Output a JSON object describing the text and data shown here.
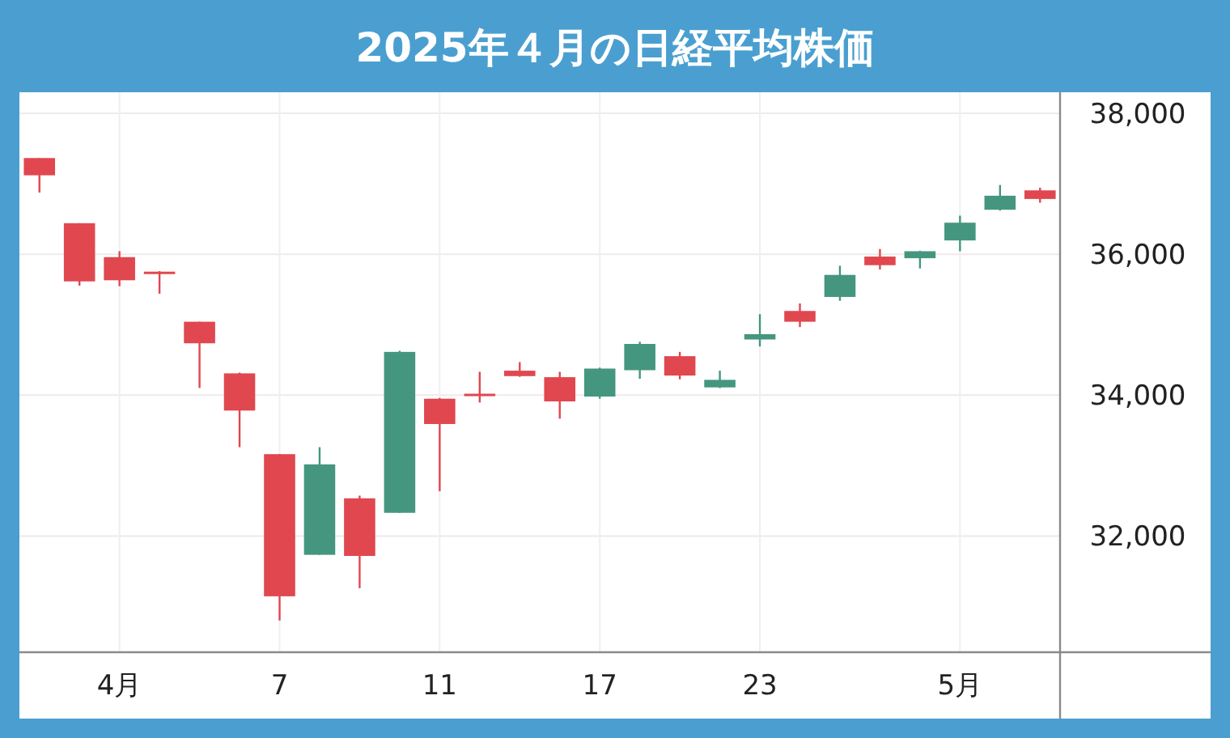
{
  "chart_data": {
    "type": "candlestick",
    "title": "2025年４月の日経平均株価",
    "categories": [
      null,
      null,
      "4月",
      null,
      null,
      null,
      "7",
      null,
      null,
      null,
      "11",
      null,
      null,
      null,
      "17",
      null,
      null,
      null,
      "23",
      null,
      null,
      null,
      null,
      "5月",
      null,
      null
    ],
    "ohlc": [
      [
        37366,
        37366,
        36876,
        37121
      ],
      [
        36441,
        36441,
        35554,
        35615
      ],
      [
        35959,
        36043,
        35547,
        35631
      ],
      [
        35753,
        35760,
        35440,
        35725
      ],
      [
        35042,
        35042,
        34102,
        34736
      ],
      [
        34309,
        34320,
        33261,
        33781
      ],
      [
        33162,
        33162,
        30800,
        31144
      ],
      [
        31733,
        33261,
        31733,
        33017
      ],
      [
        32535,
        32573,
        31259,
        31717
      ],
      [
        32329,
        34630,
        32329,
        34614
      ],
      [
        33949,
        33960,
        32635,
        33590
      ],
      [
        34020,
        34331,
        33895,
        33990
      ],
      [
        34347,
        34469,
        34260,
        34270
      ],
      [
        34255,
        34331,
        33666,
        33911
      ],
      [
        33980,
        34390,
        33950,
        34377
      ],
      [
        34354,
        34758,
        34232,
        34727
      ],
      [
        34553,
        34614,
        34224,
        34278
      ],
      [
        34110,
        34347,
        34100,
        34217
      ],
      [
        34790,
        35149,
        34691,
        34865
      ],
      [
        35195,
        35302,
        34966,
        35042
      ],
      [
        35394,
        35837,
        35340,
        35707
      ],
      [
        35967,
        36074,
        35784,
        35845
      ],
      [
        35944,
        36050,
        35799,
        36043
      ],
      [
        36196,
        36548,
        36043,
        36448
      ],
      [
        36632,
        36983,
        36620,
        36831
      ],
      [
        36907,
        36945,
        36731,
        36785
      ]
    ],
    "colors": [
      "#e0474f",
      "#e0474f",
      "#e0474f",
      "#e0474f",
      "#e0474f",
      "#e0474f",
      "#e0474f",
      "#45967f",
      "#e0474f",
      "#45967f",
      "#e0474f",
      "#e0474f",
      "#e0474f",
      "#e0474f",
      "#45967f",
      "#45967f",
      "#e0474f",
      "#45967f",
      "#45967f",
      "#e0474f",
      "#45967f",
      "#e0474f",
      "#45967f",
      "#45967f",
      "#45967f",
      "#e0474f"
    ],
    "ylim": [
      30350,
      38300
    ],
    "yticks": [
      {
        "value": 32000,
        "label": "32,000"
      },
      {
        "value": 34000,
        "label": "34,000"
      },
      {
        "value": 36000,
        "label": "36,000"
      },
      {
        "value": 38000,
        "label": "38,000"
      }
    ],
    "grid": true
  }
}
